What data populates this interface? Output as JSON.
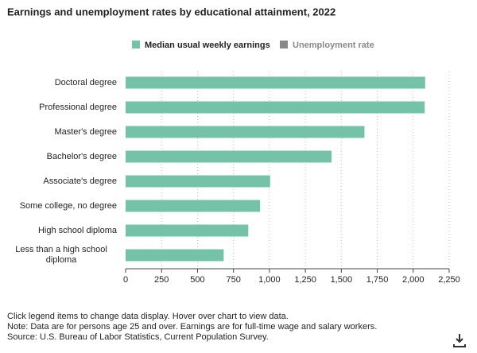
{
  "chart_data": {
    "type": "hbar",
    "title": "Earnings and unemployment rates by educational attainment, 2022",
    "categories": [
      "Doctoral degree",
      "Professional degree",
      "Master's degree",
      "Bachelor's degree",
      "Associate's degree",
      "Some college, no degree",
      "High school diploma",
      "Less than a high school diploma"
    ],
    "series": [
      {
        "name": "Median usual weekly earnings",
        "color": "#74c3a8",
        "values": [
          2083,
          2080,
          1661,
          1432,
          1005,
          935,
          853,
          682
        ]
      },
      {
        "name": "Unemployment rate",
        "color": "#888888",
        "hidden": true
      }
    ],
    "xlim": [
      0,
      2250
    ],
    "xticks": [
      0,
      250,
      500,
      750,
      {
        "value": 1000,
        "label": "1,000"
      },
      {
        "value": 1250,
        "label": "1,250"
      },
      {
        "value": 1500,
        "label": "1,500"
      },
      {
        "value": 1750,
        "label": "1,750"
      },
      {
        "value": 2000,
        "label": "2,000"
      },
      {
        "value": 2250,
        "label": "2,250"
      }
    ],
    "grid": true,
    "notes": [
      "Click legend items to change data display. Hover over chart to view data.",
      "Note: Data are for persons age 25 and over. Earnings are for full-time wage and salary workers.",
      "Source: U.S. Bureau of Labor Statistics, Current Population Survey."
    ]
  }
}
